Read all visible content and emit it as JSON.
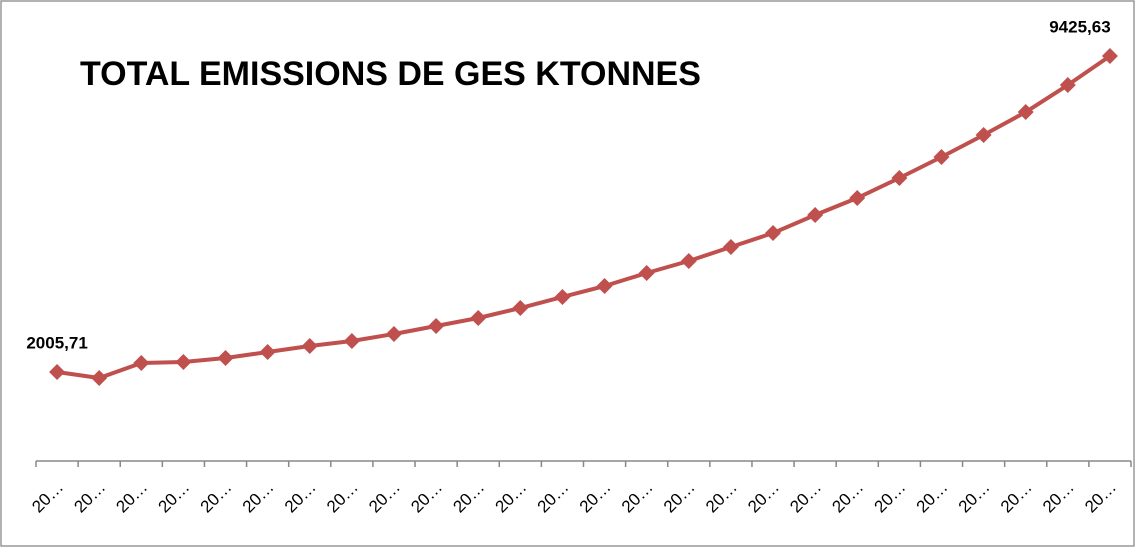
{
  "chart_data": {
    "type": "line",
    "title": "TOTAL EMISSIONS DE GES KTONNES",
    "categories": [
      "20…",
      "20…",
      "20…",
      "20…",
      "20…",
      "20…",
      "20…",
      "20…",
      "20…",
      "20…",
      "20…",
      "20…",
      "20…",
      "20…",
      "20…",
      "20…",
      "20…",
      "20…",
      "20…",
      "20…",
      "20…",
      "20…",
      "20…",
      "20…",
      "20…",
      "20…"
    ],
    "values": [
      2005.71,
      1865,
      2217,
      2240,
      2334,
      2475,
      2616,
      2734,
      2898,
      3086,
      3274,
      3508,
      3767,
      4025,
      4330,
      4612,
      4941,
      5269,
      5692,
      6091,
      6561,
      7054,
      7570,
      8110,
      8744,
      9425.63
    ],
    "value_labels": [
      "2005,71",
      null,
      null,
      null,
      null,
      null,
      null,
      null,
      null,
      null,
      null,
      null,
      null,
      null,
      null,
      null,
      null,
      null,
      null,
      null,
      null,
      null,
      null,
      null,
      null,
      "9425,63"
    ],
    "color": "#c0504d"
  }
}
